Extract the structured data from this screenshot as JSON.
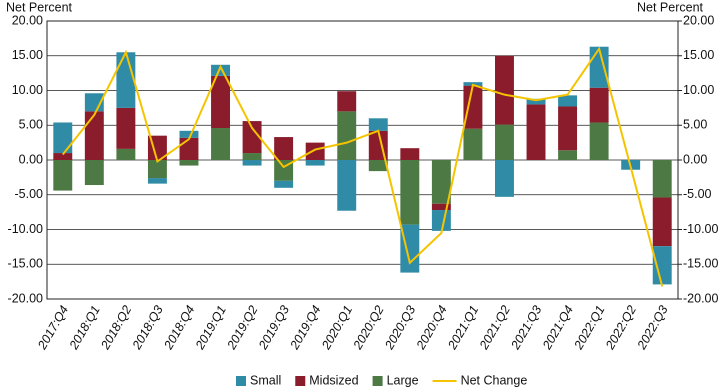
{
  "chart_data": {
    "type": "bar",
    "stacked": true,
    "y_label": "Net Percent",
    "y2_label": "Net Percent",
    "categories": [
      "2017:Q4",
      "2018:Q1",
      "2018:Q2",
      "2018:Q3",
      "2018:Q4",
      "2019:Q1",
      "2019:Q2",
      "2019:Q3",
      "2019:Q4",
      "2020:Q1",
      "2020:Q2",
      "2020:Q3",
      "2020:Q4",
      "2021:Q1",
      "2021:Q2",
      "2021:Q3",
      "2021:Q4",
      "2022:Q1",
      "2022:Q2",
      "2022:Q3"
    ],
    "series": [
      {
        "name": "Small",
        "color": "#2f8ba6",
        "values": [
          4.4,
          2.6,
          8.0,
          -0.8,
          1.0,
          1.6,
          -0.8,
          -1.0,
          -0.8,
          -7.3,
          1.8,
          -6.9,
          -3.0,
          0.5,
          -5.3,
          0.8,
          1.6,
          5.9,
          -1.4,
          -5.5
        ]
      },
      {
        "name": "Midsized",
        "color": "#8a1c2c",
        "values": [
          1.0,
          7.0,
          5.9,
          3.5,
          3.2,
          7.5,
          4.6,
          3.3,
          2.5,
          2.9,
          4.2,
          1.7,
          -0.9,
          6.2,
          9.9,
          8.0,
          6.3,
          5.0,
          0,
          -7.0
        ]
      },
      {
        "name": "Large",
        "color": "#4d7a44",
        "values": [
          -4.4,
          -3.6,
          1.6,
          -2.6,
          -0.8,
          4.6,
          1.0,
          -3.0,
          0,
          7.0,
          -1.6,
          -9.3,
          -6.3,
          4.5,
          5.1,
          0,
          1.4,
          5.4,
          0,
          -5.4
        ]
      },
      {
        "name": "Net Change",
        "type": "line",
        "color": "#f5c400",
        "values": [
          0.8,
          6.5,
          15.5,
          -0.2,
          3.0,
          13.4,
          4.6,
          -1.0,
          1.5,
          2.5,
          4.2,
          -14.8,
          -10.5,
          10.8,
          9.4,
          8.6,
          9.4,
          16.0,
          -1.0,
          -18.2
        ]
      }
    ],
    "ylim": [
      -20,
      20
    ],
    "yticks": [
      {
        "value": -20,
        "label": "-20.00"
      },
      {
        "value": -15,
        "label": "-15.00"
      },
      {
        "value": -10,
        "label": "-10.00"
      },
      {
        "value": -5,
        "label": "-5.00"
      },
      {
        "value": 0,
        "label": "0.00"
      },
      {
        "value": 5,
        "label": "5.00"
      },
      {
        "value": 10,
        "label": "10.00"
      },
      {
        "value": 15,
        "label": "15.00"
      },
      {
        "value": 20,
        "label": "20.00"
      }
    ],
    "y2lim": [
      -20,
      20
    ],
    "y2ticks": [
      {
        "value": -20,
        "label": "-20.00"
      },
      {
        "value": -15,
        "label": "-15.00"
      },
      {
        "value": -10,
        "label": "-10.00"
      },
      {
        "value": -5,
        "label": "-5.00"
      },
      {
        "value": 0,
        "label": "0.00"
      },
      {
        "value": 5,
        "label": "5.00"
      },
      {
        "value": 10,
        "label": "10.00"
      },
      {
        "value": 15,
        "label": "15.00"
      },
      {
        "value": 20,
        "label": "20.00"
      }
    ],
    "grid": true
  }
}
